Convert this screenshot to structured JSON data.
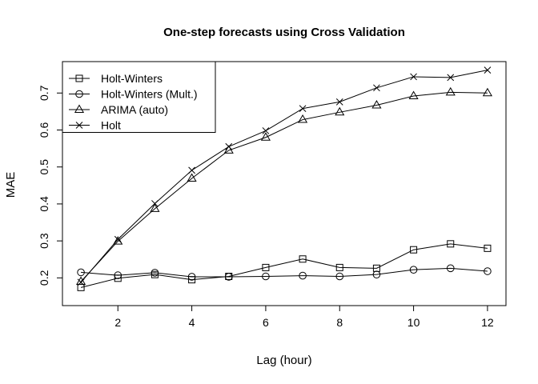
{
  "chart_data": {
    "type": "line",
    "title": "One-step forecasts using Cross Validation",
    "xlabel": "Lag (hour)",
    "ylabel": "MAE",
    "x": [
      1,
      2,
      3,
      4,
      5,
      6,
      7,
      8,
      9,
      10,
      11,
      12
    ],
    "xlim": [
      0.5,
      12.5
    ],
    "ylim": [
      0.125,
      0.785
    ],
    "xticks": [
      2,
      4,
      6,
      8,
      10,
      12
    ],
    "yticks": [
      0.2,
      0.3,
      0.4,
      0.5,
      0.6,
      0.7
    ],
    "grid": false,
    "legend_position": "top-left",
    "series": [
      {
        "name": "Holt-Winters",
        "marker": "square",
        "values": [
          0.174,
          0.199,
          0.209,
          0.195,
          0.204,
          0.228,
          0.251,
          0.228,
          0.226,
          0.276,
          0.292,
          0.28
        ]
      },
      {
        "name": "Holt-Winters (Mult.)",
        "marker": "circle",
        "values": [
          0.215,
          0.207,
          0.214,
          0.203,
          0.203,
          0.204,
          0.206,
          0.204,
          0.209,
          0.222,
          0.226,
          0.218
        ]
      },
      {
        "name": "ARIMA (auto)",
        "marker": "triangle",
        "values": [
          0.19,
          0.299,
          0.387,
          0.469,
          0.545,
          0.58,
          0.628,
          0.648,
          0.667,
          0.692,
          0.702,
          0.7
        ]
      },
      {
        "name": "Holt",
        "marker": "cross",
        "values": [
          0.188,
          0.304,
          0.401,
          0.491,
          0.555,
          0.598,
          0.658,
          0.676,
          0.714,
          0.744,
          0.742,
          0.762
        ]
      }
    ]
  }
}
